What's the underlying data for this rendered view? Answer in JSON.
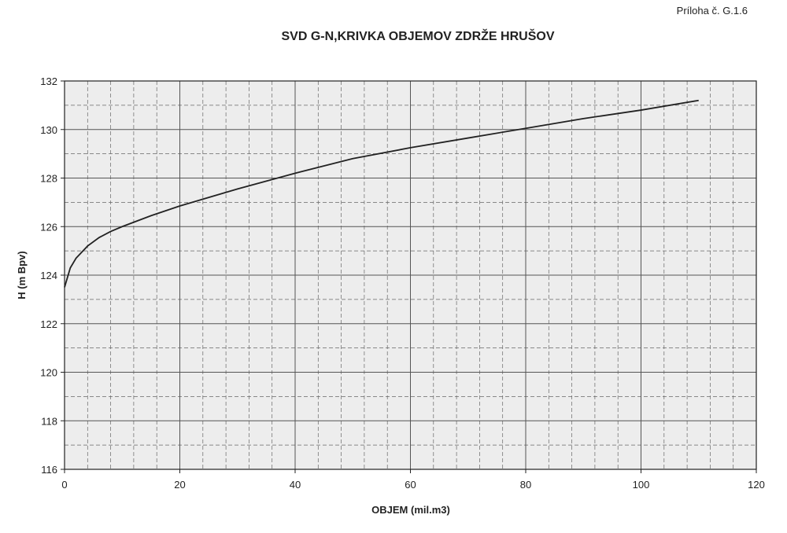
{
  "chart_data": {
    "type": "line",
    "annotation": "Príloha č. G.1.6",
    "title": "SVD G-N,KRIVKA OBJEMOV ZDRŽE HRUŠOV",
    "x_label": "OBJEM (mil.m3)",
    "y_label": "H (m Bpv)",
    "x": [
      0,
      1,
      2,
      4,
      6,
      8,
      10,
      15,
      20,
      30,
      40,
      50,
      60,
      70,
      80,
      90,
      100,
      110
    ],
    "series": [
      {
        "color": "#222222",
        "values": [
          123.5,
          124.3,
          124.7,
          125.2,
          125.55,
          125.8,
          126.0,
          126.45,
          126.85,
          127.55,
          128.2,
          128.8,
          129.25,
          129.65,
          130.05,
          130.45,
          130.8,
          131.2
        ]
      }
    ],
    "xlim": [
      0,
      120
    ],
    "xticks": [
      0,
      20,
      40,
      60,
      80,
      100,
      120
    ],
    "ylim": [
      116,
      132
    ],
    "yticks": [
      116,
      118,
      120,
      122,
      124,
      126,
      128,
      130,
      132
    ],
    "grid": true
  }
}
